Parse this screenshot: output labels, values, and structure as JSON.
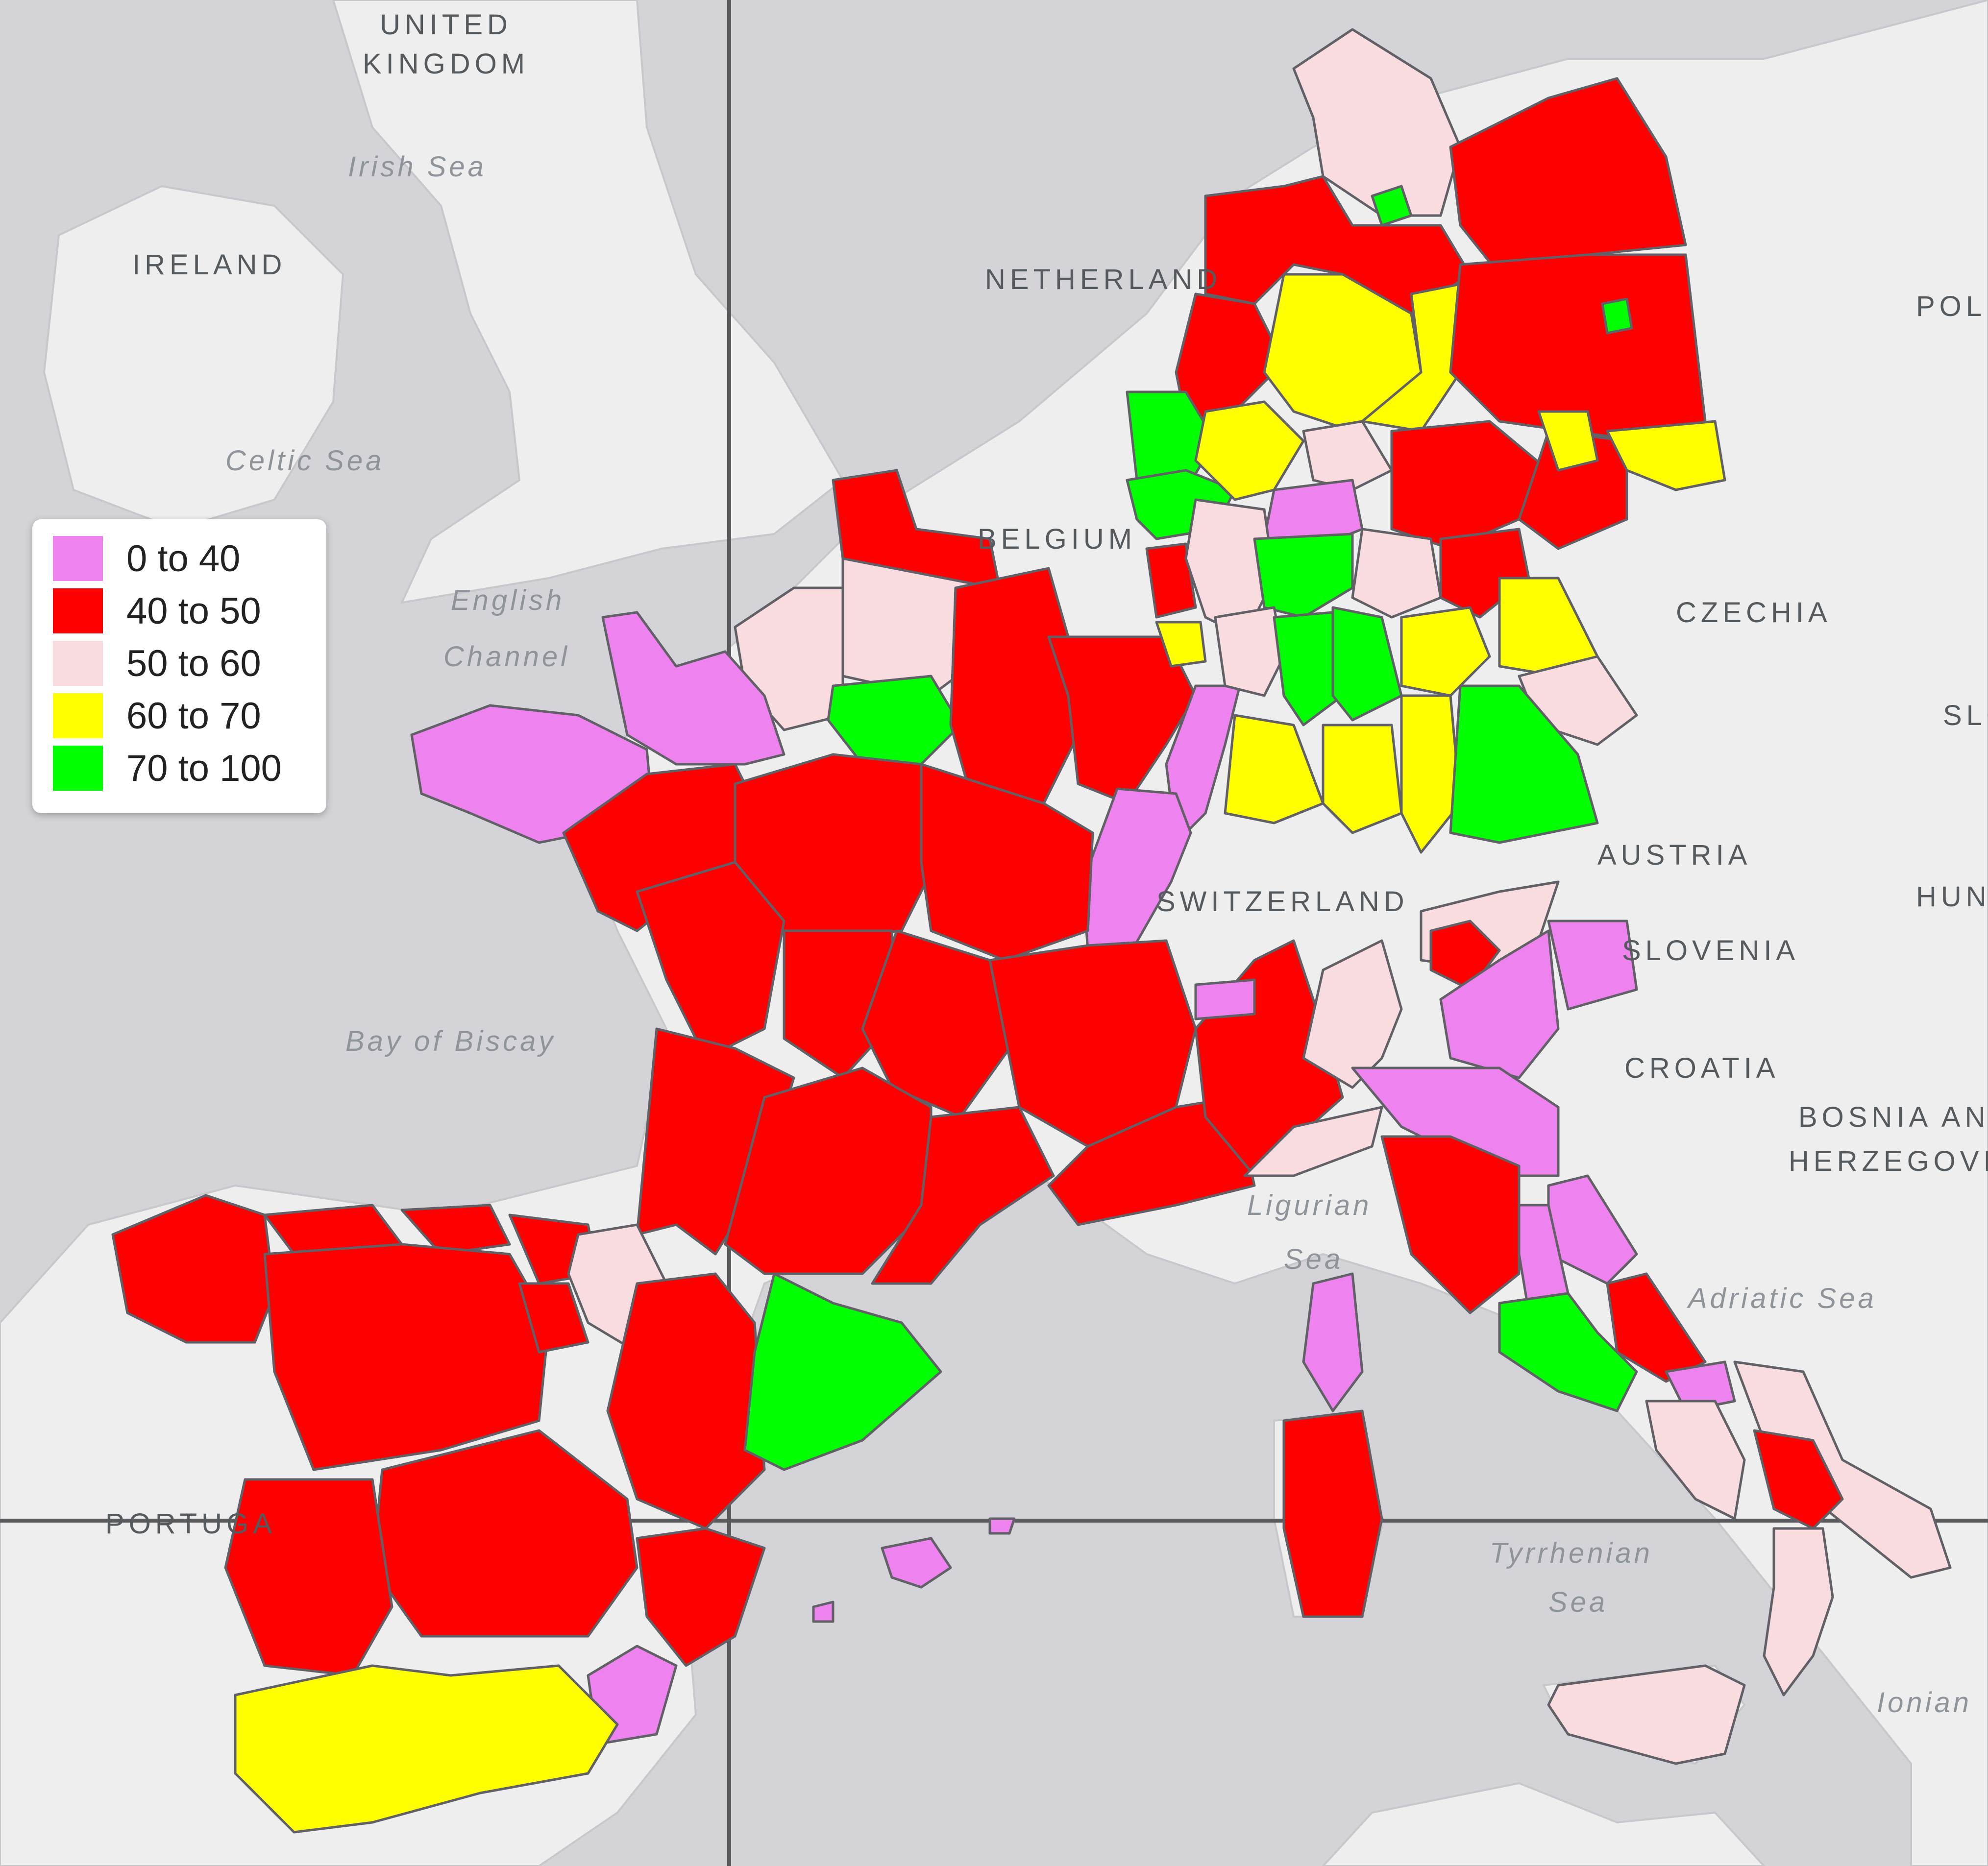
{
  "map": {
    "country_labels": {
      "united_line1": "UNITED",
      "united_line2": "KINGDOM",
      "ireland": "IRELAND",
      "netherlands": "NETHERLAND",
      "belgium": "BELGIUM",
      "czechia": "CZECHIA",
      "austria": "AUSTRIA",
      "switzerland": "SWITZERLAND",
      "slovenia": "SLOVENIA",
      "croatia": "CROATIA",
      "bosnia_line1": "BOSNIA AN",
      "bosnia_line2": "HERZEGOVI",
      "portugal": "PORTUGA",
      "poland": "POL",
      "slovakia": "SLO",
      "hungary": "HUN"
    },
    "sea_labels": {
      "irish_sea": "Irish Sea",
      "celtic_sea": "Celtic Sea",
      "english_line1": "English",
      "english_line2": "Channel",
      "biscay": "Bay of Biscay",
      "ligurian_line1": "Ligurian",
      "ligurian_line2": "Sea",
      "adriatic": "Adriatic Sea",
      "tyrrhenian_line1": "Tyrrhenian",
      "tyrrhenian_line2": "Sea",
      "ionian": "Ionian"
    }
  },
  "legend": {
    "items": [
      {
        "label": "0 to 40",
        "color": "#ee82ee"
      },
      {
        "label": "40 to 50",
        "color": "#ff0000"
      },
      {
        "label": "50 to 60",
        "color": "#f9dce0"
      },
      {
        "label": "60 to 70",
        "color": "#ffff00"
      },
      {
        "label": "70 to 100",
        "color": "#00ff00"
      }
    ]
  },
  "colors": {
    "sea": "#d4d4d8",
    "land": "#eeeeee",
    "c0_40": "#ee82ee",
    "c40_50": "#ff0000",
    "c50_60": "#f9dce0",
    "c60_70": "#ffff00",
    "c70_100": "#00ff00"
  }
}
